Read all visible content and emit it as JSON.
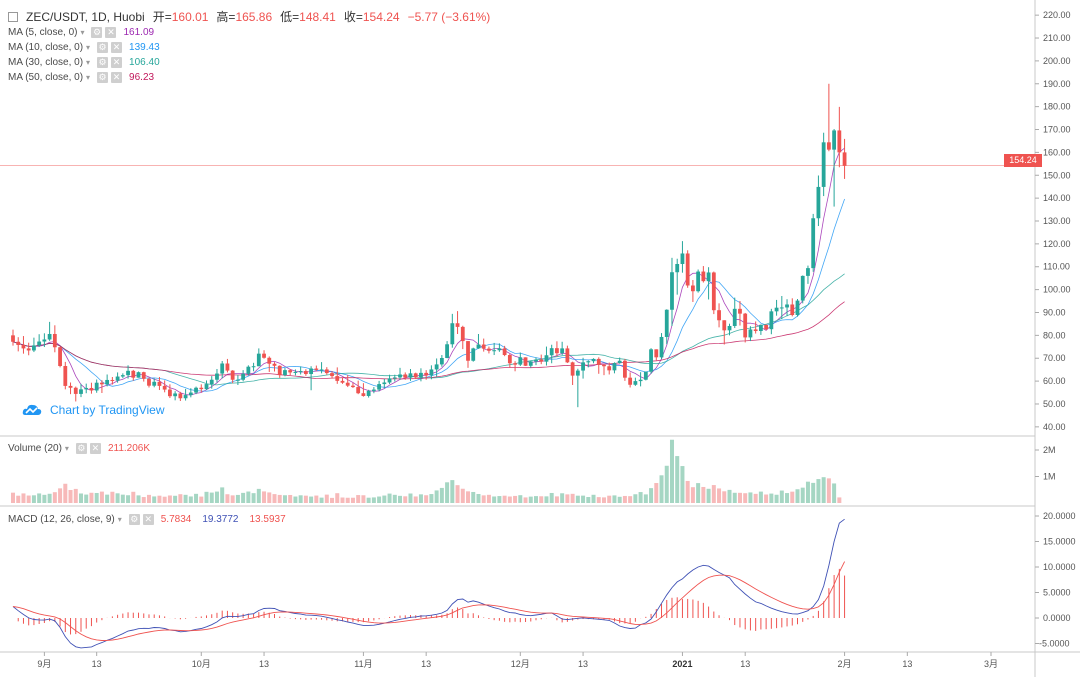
{
  "header": {
    "symbol": "ZEC/USDT, 1D, Huobi",
    "open_label": "开=",
    "open_value": "160.01",
    "high_label": "高=",
    "high_value": "165.86",
    "low_label": "低=",
    "low_value": "148.41",
    "close_label": "收=",
    "close_value": "154.24",
    "change": "−5.77 (−3.61%)"
  },
  "indicators": [
    {
      "label": "MA (5, close, 0)",
      "value": "161.09",
      "color": "#9c27b0"
    },
    {
      "label": "MA (10, close, 0)",
      "value": "139.43",
      "color": "#2196f3"
    },
    {
      "label": "MA (30, close, 0)",
      "value": "106.40",
      "color": "#26a69a"
    },
    {
      "label": "MA (50, close, 0)",
      "value": "96.23",
      "color": "#c2185b"
    }
  ],
  "volume_panel": {
    "label": "Volume (20)",
    "value": "211.206K"
  },
  "macd_panel": {
    "label": "MACD (12, 26, close, 9)",
    "hist": "5.7834",
    "macd": "19.3772",
    "signal": "13.5937",
    "hist_color": "#ef5350",
    "macd_color": "#3f51b5",
    "signal_color": "#ef5350"
  },
  "branding": {
    "text": "Chart by TradingView"
  },
  "last_price_tag": "154.24",
  "colors": {
    "up": "#26a69a",
    "up_fill": "#a5d6c3",
    "down": "#ef5350",
    "down_fill": "#f7b9b9"
  },
  "chart_data": {
    "type": "candlestick",
    "price_axis": {
      "ticks": [
        40,
        50,
        60,
        70,
        80,
        90,
        100,
        110,
        120,
        130,
        140,
        150,
        160,
        170,
        180,
        190,
        200,
        210,
        220
      ],
      "range": [
        36,
        224
      ]
    },
    "volume_axis": {
      "ticks": [
        "1M",
        "2M"
      ],
      "range_m": [
        0,
        2.4
      ]
    },
    "macd_axis": {
      "ticks": [
        -5,
        0,
        5,
        10,
        15,
        20
      ],
      "range": [
        -7,
        21
      ]
    },
    "time_axis": [
      {
        "label": "9月",
        "day": 6
      },
      {
        "label": "13",
        "day": 16
      },
      {
        "label": "10月",
        "day": 36
      },
      {
        "label": "13",
        "day": 48
      },
      {
        "label": "11月",
        "day": 67
      },
      {
        "label": "13",
        "day": 79
      },
      {
        "label": "12月",
        "day": 97
      },
      {
        "label": "13",
        "day": 109
      },
      {
        "label": "2021",
        "day": 128
      },
      {
        "label": "13",
        "day": 140
      },
      {
        "label": "2月",
        "day": 159
      },
      {
        "label": "13",
        "day": 171
      },
      {
        "label": "3月",
        "day": 187
      }
    ],
    "candles_ohlc": [
      [
        80.0,
        82.5,
        75.5,
        77.2
      ],
      [
        77.2,
        79.2,
        73.0,
        75.8
      ],
      [
        75.8,
        79.7,
        72.0,
        74.3
      ],
      [
        74.3,
        76.8,
        71.3,
        73.4
      ],
      [
        73.4,
        79.0,
        72.7,
        75.6
      ],
      [
        75.6,
        80.5,
        74.9,
        77.3
      ],
      [
        77.3,
        80.9,
        74.9,
        78.2
      ],
      [
        78.2,
        85.9,
        77.6,
        80.6
      ],
      [
        80.6,
        84.4,
        72.6,
        74.8
      ],
      [
        74.8,
        75.1,
        66.0,
        66.6
      ],
      [
        66.6,
        68.4,
        56.4,
        57.9
      ],
      [
        57.9,
        59.4,
        54.3,
        57.1
      ],
      [
        57.1,
        57.6,
        51.1,
        54.4
      ],
      [
        54.4,
        58.8,
        53.0,
        56.4
      ],
      [
        56.4,
        58.9,
        54.7,
        57.0
      ],
      [
        57.0,
        59.3,
        54.5,
        55.9
      ],
      [
        55.9,
        60.7,
        54.9,
        59.3
      ],
      [
        59.3,
        60.4,
        54.8,
        58.6
      ],
      [
        58.6,
        62.9,
        57.7,
        60.5
      ],
      [
        60.5,
        61.8,
        58.5,
        60.2
      ],
      [
        60.2,
        63.8,
        59.3,
        62.0
      ],
      [
        62.0,
        63.4,
        61.3,
        62.6
      ],
      [
        62.6,
        66.9,
        61.1,
        64.5
      ],
      [
        64.5,
        64.9,
        60.2,
        61.5
      ],
      [
        61.5,
        64.2,
        61.5,
        63.9
      ],
      [
        63.9,
        64.1,
        59.8,
        61.0
      ],
      [
        61.0,
        61.5,
        57.2,
        58.0
      ],
      [
        58.0,
        61.2,
        57.3,
        59.7
      ],
      [
        59.7,
        61.8,
        56.1,
        57.9
      ],
      [
        57.9,
        60.3,
        55.1,
        56.3
      ],
      [
        56.3,
        58.6,
        52.6,
        53.4
      ],
      [
        53.4,
        55.6,
        51.6,
        54.6
      ],
      [
        54.6,
        55.3,
        51.3,
        52.5
      ],
      [
        52.5,
        56.6,
        51.5,
        53.9
      ],
      [
        53.9,
        56.9,
        52.9,
        55.0
      ],
      [
        55.0,
        57.6,
        54.3,
        57.1
      ],
      [
        57.1,
        58.6,
        55.1,
        56.5
      ],
      [
        56.5,
        60.3,
        56.1,
        58.7
      ],
      [
        58.7,
        62.2,
        56.7,
        60.6
      ],
      [
        60.6,
        65.3,
        59.4,
        63.3
      ],
      [
        63.3,
        68.8,
        61.2,
        67.7
      ],
      [
        67.7,
        69.7,
        63.8,
        64.6
      ],
      [
        64.6,
        64.8,
        59.1,
        60.6
      ],
      [
        60.6,
        62.6,
        58.3,
        60.6
      ],
      [
        60.6,
        64.8,
        59.9,
        63.2
      ],
      [
        63.2,
        66.9,
        62.4,
        66.3
      ],
      [
        66.3,
        68.0,
        64.3,
        66.5
      ],
      [
        66.5,
        74.3,
        66.5,
        72.0
      ],
      [
        72.0,
        73.5,
        69.8,
        70.2
      ],
      [
        70.2,
        70.8,
        64.0,
        67.6
      ],
      [
        67.6,
        68.3,
        64.2,
        66.7
      ],
      [
        66.7,
        66.9,
        61.4,
        62.6
      ],
      [
        62.6,
        65.7,
        62.1,
        64.8
      ],
      [
        64.8,
        65.3,
        62.6,
        63.8
      ],
      [
        63.8,
        65.1,
        62.5,
        64.0
      ],
      [
        64.0,
        66.4,
        62.9,
        64.4
      ],
      [
        64.4,
        65.2,
        62.3,
        63.1
      ],
      [
        63.1,
        66.5,
        56.0,
        65.5
      ],
      [
        65.5,
        66.8,
        64.5,
        64.9
      ],
      [
        64.9,
        68.3,
        63.4,
        65.1
      ],
      [
        65.1,
        66.1,
        62.8,
        63.5
      ],
      [
        63.5,
        64.3,
        61.1,
        62.2
      ],
      [
        62.2,
        66.0,
        58.8,
        60.1
      ],
      [
        60.1,
        61.6,
        58.8,
        59.3
      ],
      [
        59.3,
        62.7,
        57.4,
        58.0
      ],
      [
        58.0,
        59.3,
        57.0,
        57.4
      ],
      [
        57.4,
        60.2,
        54.3,
        54.7
      ],
      [
        54.7,
        59.1,
        53.2,
        53.5
      ],
      [
        53.5,
        56.2,
        52.8,
        55.7
      ],
      [
        55.7,
        57.4,
        54.7,
        56.3
      ],
      [
        56.3,
        60.1,
        55.5,
        58.7
      ],
      [
        58.7,
        61.0,
        56.9,
        59.4
      ],
      [
        59.4,
        62.8,
        58.7,
        61.2
      ],
      [
        61.2,
        62.8,
        59.8,
        61.6
      ],
      [
        61.6,
        65.8,
        60.6,
        62.9
      ],
      [
        62.9,
        63.8,
        60.6,
        61.5
      ],
      [
        61.5,
        65.3,
        60.1,
        63.4
      ],
      [
        63.4,
        63.7,
        60.9,
        61.6
      ],
      [
        61.6,
        65.6,
        59.9,
        63.6
      ],
      [
        63.6,
        64.8,
        60.6,
        62.5
      ],
      [
        62.5,
        66.9,
        60.8,
        65.1
      ],
      [
        65.1,
        69.9,
        62.0,
        67.3
      ],
      [
        67.3,
        71.4,
        66.3,
        70.1
      ],
      [
        70.1,
        77.5,
        70.0,
        76.1
      ],
      [
        76.1,
        89.4,
        74.6,
        85.3
      ],
      [
        85.3,
        90.6,
        80.6,
        83.7
      ],
      [
        83.7,
        84.2,
        74.0,
        77.5
      ],
      [
        77.5,
        77.5,
        65.8,
        68.9
      ],
      [
        68.9,
        74.6,
        68.5,
        74.3
      ],
      [
        74.3,
        80.6,
        74.1,
        76.0
      ],
      [
        76.0,
        78.6,
        72.9,
        74.2
      ],
      [
        74.2,
        75.1,
        72.1,
        73.3
      ],
      [
        73.3,
        76.7,
        71.4,
        73.5
      ],
      [
        73.5,
        76.5,
        72.8,
        74.3
      ],
      [
        74.3,
        75.4,
        70.9,
        71.4
      ],
      [
        71.4,
        71.9,
        65.8,
        67.8
      ],
      [
        67.8,
        68.7,
        64.3,
        67.2
      ],
      [
        67.2,
        72.5,
        66.6,
        70.4
      ],
      [
        70.4,
        70.4,
        66.6,
        66.7
      ],
      [
        66.7,
        68.9,
        65.9,
        68.6
      ],
      [
        68.6,
        70.3,
        67.0,
        69.4
      ],
      [
        69.4,
        71.6,
        67.4,
        68.5
      ],
      [
        68.5,
        75.1,
        66.8,
        71.3
      ],
      [
        71.3,
        75.9,
        67.8,
        74.4
      ],
      [
        74.4,
        77.4,
        70.8,
        72.2
      ],
      [
        72.2,
        77.2,
        71.4,
        74.3
      ],
      [
        74.3,
        75.5,
        67.9,
        68.2
      ],
      [
        68.2,
        68.5,
        58.3,
        62.4
      ],
      [
        62.4,
        65.4,
        48.6,
        64.6
      ],
      [
        64.6,
        70.2,
        61.1,
        68.2
      ],
      [
        68.2,
        69.1,
        66.0,
        68.7
      ],
      [
        68.7,
        70.0,
        67.8,
        69.7
      ],
      [
        69.7,
        70.4,
        63.2,
        67.1
      ],
      [
        67.1,
        67.2,
        62.6,
        66.5
      ],
      [
        66.5,
        68.1,
        62.9,
        64.7
      ],
      [
        64.7,
        68.2,
        63.4,
        67.9
      ],
      [
        67.9,
        70.3,
        67.6,
        68.9
      ],
      [
        68.9,
        69.7,
        60.1,
        61.5
      ],
      [
        61.5,
        63.8,
        57.2,
        58.4
      ],
      [
        58.4,
        61.5,
        57.9,
        60.0
      ],
      [
        60.0,
        63.9,
        57.7,
        60.6
      ],
      [
        60.6,
        64.2,
        60.3,
        64.1
      ],
      [
        64.1,
        74.4,
        63.2,
        73.9
      ],
      [
        73.9,
        73.9,
        69.1,
        70.4
      ],
      [
        70.4,
        81.0,
        69.6,
        79.3
      ],
      [
        79.3,
        91.4,
        76.1,
        91.2
      ],
      [
        91.2,
        113.9,
        84.1,
        107.6
      ],
      [
        107.6,
        113.5,
        97.8,
        111.2
      ],
      [
        111.2,
        121.2,
        107.4,
        115.8
      ],
      [
        115.8,
        117.2,
        100.8,
        101.8
      ],
      [
        101.8,
        104.2,
        94.6,
        99.3
      ],
      [
        99.3,
        108.8,
        98.7,
        107.9
      ],
      [
        107.9,
        110.3,
        103.1,
        103.7
      ],
      [
        103.7,
        109.8,
        95.7,
        107.5
      ],
      [
        107.5,
        107.9,
        89.3,
        91.0
      ],
      [
        91.0,
        94.0,
        83.5,
        86.6
      ],
      [
        86.6,
        86.6,
        76.0,
        82.2
      ],
      [
        82.2,
        85.1,
        80.0,
        84.1
      ],
      [
        84.1,
        96.5,
        83.2,
        91.6
      ],
      [
        91.6,
        95.0,
        84.3,
        89.5
      ],
      [
        89.5,
        89.8,
        76.9,
        79.1
      ],
      [
        79.1,
        84.0,
        77.5,
        82.6
      ],
      [
        82.6,
        86.1,
        80.8,
        81.9
      ],
      [
        81.9,
        84.8,
        80.2,
        84.6
      ],
      [
        84.6,
        84.7,
        82.3,
        82.7
      ],
      [
        82.7,
        91.6,
        80.5,
        90.5
      ],
      [
        90.5,
        95.5,
        88.6,
        92.1
      ],
      [
        92.1,
        97.2,
        87.1,
        92.2
      ],
      [
        92.2,
        95.8,
        88.4,
        93.5
      ],
      [
        93.5,
        96.2,
        88.3,
        88.9
      ],
      [
        88.9,
        95.9,
        88.2,
        95.2
      ],
      [
        95.2,
        106.2,
        94.0,
        106.0
      ],
      [
        106.0,
        110.5,
        102.5,
        109.4
      ],
      [
        109.4,
        133.1,
        107.8,
        131.2
      ],
      [
        131.2,
        149.9,
        127.8,
        144.9
      ],
      [
        144.9,
        168.6,
        140.9,
        164.4
      ],
      [
        164.4,
        190.0,
        160.5,
        161.2
      ],
      [
        161.2,
        170.2,
        136.3,
        169.6
      ],
      [
        169.6,
        179.9,
        153.5,
        160.0
      ],
      [
        160.0,
        165.9,
        148.4,
        154.2
      ]
    ],
    "volumes_k": [
      390,
      275,
      362,
      282,
      290,
      361,
      308,
      348,
      408,
      553,
      726,
      490,
      532,
      359,
      318,
      386,
      378,
      430,
      316,
      424,
      366,
      315,
      293,
      423,
      288,
      225,
      307,
      248,
      276,
      237,
      284,
      272,
      332,
      308,
      247,
      346,
      242,
      422,
      393,
      431,
      589,
      331,
      288,
      305,
      382,
      433,
      372,
      533,
      437,
      399,
      336,
      305,
      292,
      303,
      244,
      291,
      277,
      243,
      281,
      203,
      316,
      193,
      370,
      207,
      198,
      199,
      300,
      292,
      200,
      211,
      244,
      281,
      355,
      308,
      270,
      253,
      358,
      247,
      327,
      293,
      338,
      475,
      569,
      781,
      864,
      673,
      538,
      440,
      416,
      340,
      288,
      309,
      246,
      262,
      275,
      245,
      267,
      295,
      211,
      241,
      260,
      254,
      251,
      378,
      250,
      367,
      326,
      346,
      276,
      278,
      226,
      310,
      222,
      212,
      276,
      287,
      234,
      266,
      258,
      330,
      413,
      325,
      561,
      754,
      1045,
      1405,
      2387,
      1771,
      1394,
      832,
      596,
      751,
      605,
      536,
      677,
      549,
      442,
      495,
      385,
      384,
      369,
      399,
      345,
      430,
      321,
      355,
      311,
      470,
      375,
      428,
      519,
      579,
      805,
      759,
      903,
      974,
      930,
      738,
      211
    ],
    "macd": [
      2.26,
      1.44,
      0.69,
      0.01,
      -0.29,
      -0.37,
      -0.42,
      -0.21,
      -0.55,
      -1.86,
      -3.64,
      -4.92,
      -5.64,
      -5.86,
      -5.76,
      -5.67,
      -5.19,
      -4.83,
      -4.37,
      -4.0,
      -3.53,
      -3.07,
      -2.55,
      -2.36,
      -2.09,
      -2.02,
      -2.03,
      -1.87,
      -1.91,
      -2.05,
      -2.38,
      -2.48,
      -2.7,
      -2.63,
      -2.47,
      -2.22,
      -2.05,
      -1.72,
      -1.31,
      -0.77,
      0.02,
      0.33,
      0.32,
      0.31,
      0.45,
      0.72,
      0.84,
      1.48,
      1.86,
      1.93,
      1.87,
      1.44,
      1.27,
      1.05,
      0.88,
      0.77,
      0.57,
      0.55,
      0.48,
      0.36,
      0.14,
      -0.08,
      -0.35,
      -0.53,
      -0.79,
      -1.0,
      -1.25,
      -1.46,
      -1.45,
      -1.41,
      -1.24,
      -1.01,
      -0.76,
      -0.5,
      -0.26,
      -0.08,
      0.13,
      0.22,
      0.39,
      0.43,
      0.55,
      0.72,
      0.98,
      1.5,
      2.75,
      3.6,
      3.73,
      3.09,
      3.36,
      3.09,
      2.7,
      2.35,
      2.01,
      1.77,
      1.36,
      1.06,
      0.99,
      0.69,
      0.53,
      0.46,
      0.58,
      0.72,
      0.92,
      0.99,
      0.41,
      -0.22,
      -0.31,
      -0.18,
      -0.05,
      0.01,
      -0.07,
      -0.15,
      -0.26,
      -0.35,
      -0.47,
      -0.99,
      -1.56,
      -1.89,
      -2.05,
      -1.98,
      -1.29,
      -0.97,
      -0.2,
      1.21,
      2.89,
      4.55,
      5.97,
      7.08,
      7.66,
      8.62,
      9.42,
      10.0,
      10.34,
      10.18,
      9.52,
      8.93,
      8.42,
      7.87,
      6.56,
      5.63,
      4.7,
      3.88,
      3.15,
      2.87,
      2.37,
      1.93,
      1.55,
      1.24,
      1.02,
      0.82,
      0.78,
      1.05,
      1.44,
      2.24,
      3.59,
      6.27,
      10.31,
      15.0,
      18.61,
      19.38
    ]
  }
}
